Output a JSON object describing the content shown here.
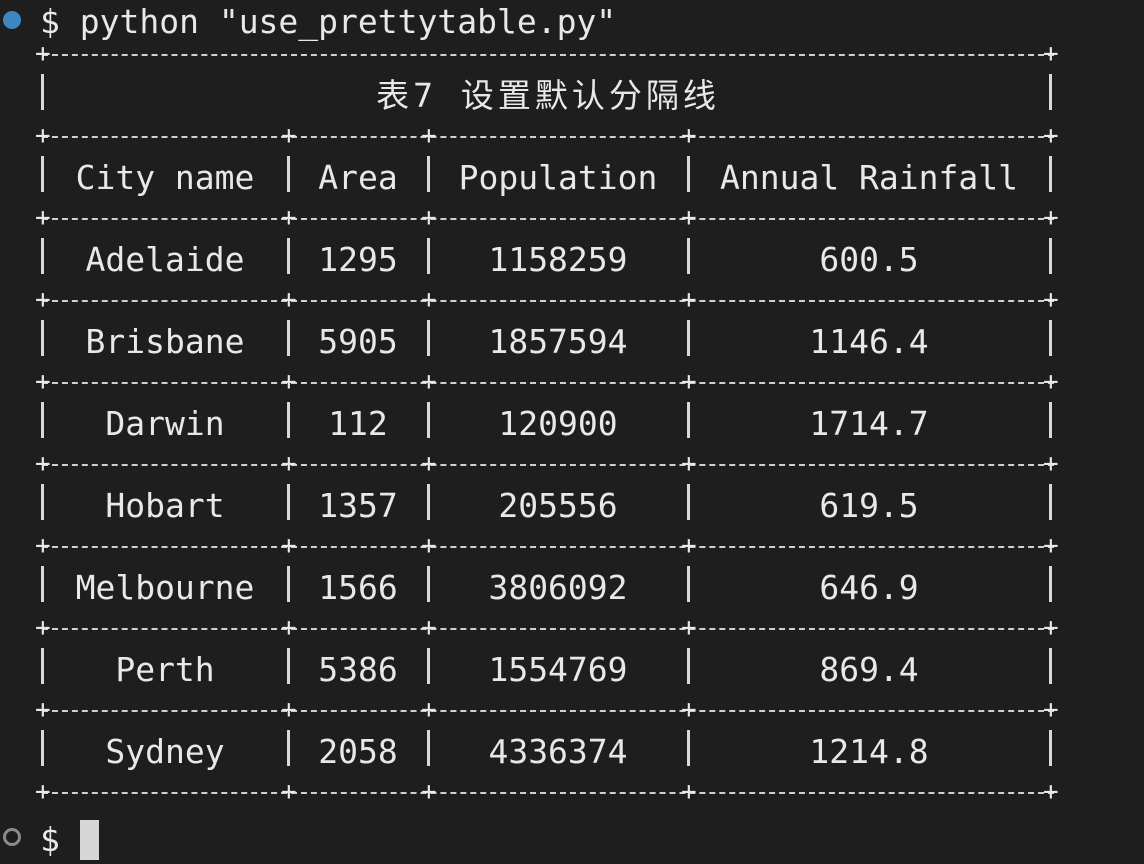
{
  "terminal": {
    "command_prompt": "$",
    "command": "python \"use_prettytable.py\"",
    "idle_prompt": "$"
  },
  "table": {
    "title": "表7 设置默认分隔线",
    "headers": [
      "City name",
      "Area",
      "Population",
      "Annual Rainfall"
    ],
    "rows": [
      [
        "Adelaide",
        "1295",
        "1158259",
        "600.5"
      ],
      [
        "Brisbane",
        "5905",
        "1857594",
        "1146.4"
      ],
      [
        "Darwin",
        "112",
        "120900",
        "1714.7"
      ],
      [
        "Hobart",
        "1357",
        "205556",
        "619.5"
      ],
      [
        "Melbourne",
        "1566",
        "3806092",
        "646.9"
      ],
      [
        "Perth",
        "5386",
        "1554769",
        "869.4"
      ],
      [
        "Sydney",
        "2058",
        "4336374",
        "1214.8"
      ]
    ]
  },
  "colors": {
    "background": "#1e1e1e",
    "text": "#e8e8e8",
    "status_dot": "#3a87c4"
  }
}
